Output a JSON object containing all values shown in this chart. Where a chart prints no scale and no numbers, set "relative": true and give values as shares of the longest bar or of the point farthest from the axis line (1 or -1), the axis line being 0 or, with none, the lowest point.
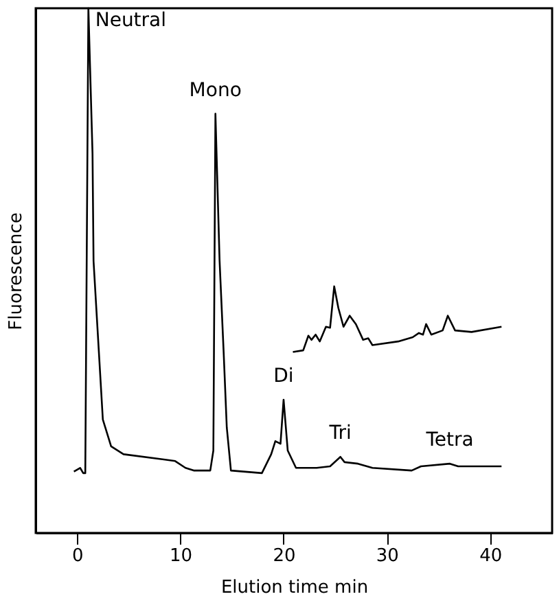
{
  "chart_data": {
    "type": "line",
    "relative": true,
    "xlabel": "Elution time min",
    "ylabel": "Fluorescence",
    "xlim": [
      -4,
      46
    ],
    "xticks": [
      0,
      10,
      20,
      30,
      40
    ],
    "grid": false,
    "marker": "none",
    "line_style": "solid",
    "series": [
      {
        "color": "#000000",
        "x": [
          -0.3,
          0.3,
          0.6,
          0.8,
          1.1,
          1.5,
          1.6,
          2.5,
          3.3,
          4.5,
          8.4,
          9.5,
          10.5,
          11.3,
          12.9,
          13.2,
          13.4,
          13.8,
          14.2,
          14.5,
          14.9,
          17.9,
          18.8,
          19.2,
          19.7,
          20.0,
          20.4,
          21.2,
          23.2,
          24.5,
          25.5,
          25.9,
          27.2,
          28.6,
          32.4,
          33.3,
          36.1,
          36.9,
          41.1
        ],
        "values": [
          0.117,
          0.124,
          0.114,
          0.114,
          1.0,
          0.723,
          0.518,
          0.216,
          0.165,
          0.15,
          0.14,
          0.137,
          0.124,
          0.119,
          0.119,
          0.157,
          0.799,
          0.52,
          0.343,
          0.201,
          0.119,
          0.114,
          0.15,
          0.175,
          0.17,
          0.254,
          0.157,
          0.124,
          0.124,
          0.127,
          0.145,
          0.135,
          0.132,
          0.124,
          0.119,
          0.127,
          0.132,
          0.127,
          0.127
        ]
      },
      {
        "color": "#000000",
        "x": [
          20.9,
          21.9,
          22.4,
          22.7,
          23.1,
          23.5,
          24.1,
          24.5,
          24.9,
          25.3,
          25.8,
          26.4,
          27.0,
          27.7,
          28.2,
          28.6,
          31.1,
          32.5,
          33.1,
          33.5,
          33.8,
          34.3,
          35.4,
          35.9,
          36.6,
          38.2,
          41.1
        ],
        "values": [
          0.345,
          0.348,
          0.376,
          0.368,
          0.378,
          0.365,
          0.393,
          0.391,
          0.47,
          0.429,
          0.393,
          0.414,
          0.398,
          0.368,
          0.371,
          0.358,
          0.365,
          0.373,
          0.381,
          0.378,
          0.398,
          0.378,
          0.386,
          0.414,
          0.386,
          0.383,
          0.393
        ]
      }
    ],
    "annotations": [
      {
        "text": "Neutral",
        "x": 1.1,
        "y": 1.0
      },
      {
        "text": "Mono",
        "x": 13.4,
        "y": 0.799
      },
      {
        "text": "Di",
        "x": 20.0,
        "y": 0.254
      },
      {
        "text": "Tri",
        "x": 25.5,
        "y": 0.145
      },
      {
        "text": "Tetra",
        "x": 36.1,
        "y": 0.132
      }
    ]
  }
}
